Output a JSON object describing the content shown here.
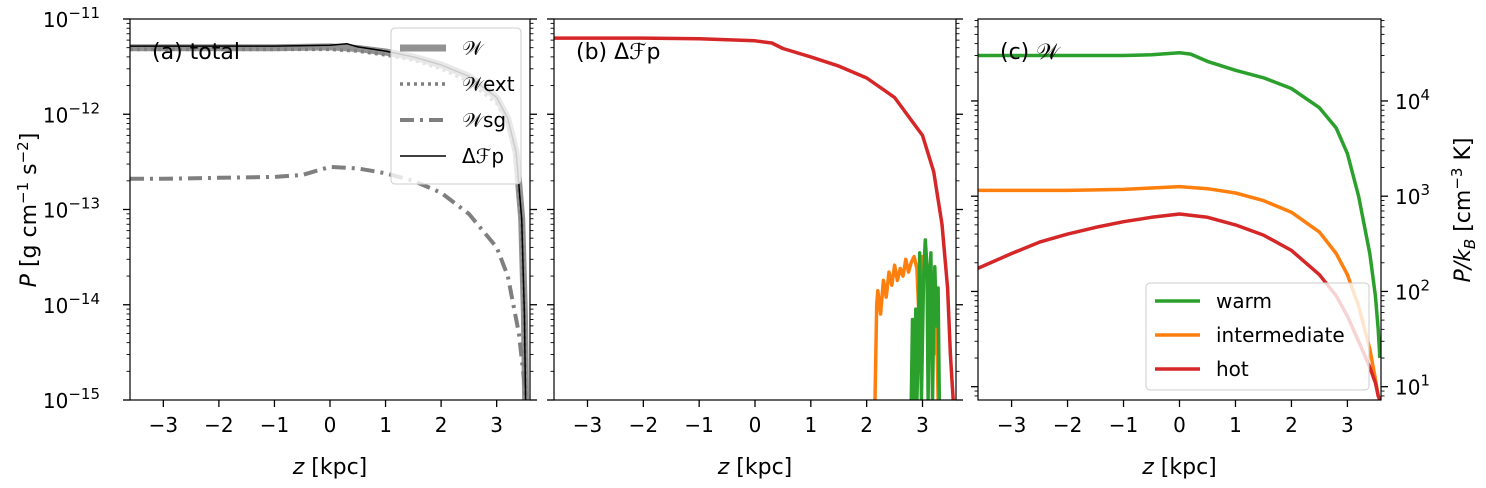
{
  "chart_data": [
    {
      "type": "line",
      "panel_label": "(a) total",
      "xlabel": "z [kpc]",
      "ylabel": "P [g cm⁻¹ s⁻²]",
      "xlim": [
        -3.6,
        3.6
      ],
      "ylim": [
        1e-15,
        1e-11
      ],
      "yscale": "log",
      "x_ticks": [
        -3,
        -2,
        -1,
        0,
        1,
        2,
        3
      ],
      "x_tick_labels": [
        "−3",
        "−2",
        "−1",
        "0",
        "1",
        "2",
        "3"
      ],
      "y_tick_labels": [
        {
          "base": "10",
          "exp": "−11"
        },
        {
          "base": "10",
          "exp": "−12"
        },
        {
          "base": "10",
          "exp": "−13"
        },
        {
          "base": "10",
          "exp": "−14"
        },
        {
          "base": "10",
          "exp": "−15"
        }
      ],
      "legend": {
        "location": "upper-right",
        "entries": [
          "𝒲",
          "𝒲ext",
          "𝒲sg",
          "Δℱp"
        ]
      },
      "series": [
        {
          "name": "𝒲",
          "color": "#7f7f7f",
          "style": "solid-thick",
          "x": [
            -3.6,
            -3,
            -2,
            -1,
            0,
            0.5,
            1,
            1.5,
            2,
            2.5,
            3,
            3.2,
            3.35,
            3.45,
            3.5,
            3.52
          ],
          "y": [
            5e-12,
            5e-12,
            5e-12,
            5e-12,
            5.1e-12,
            4.9e-12,
            4.5e-12,
            4e-12,
            3.3e-12,
            2.5e-12,
            1.5e-12,
            9e-13,
            4e-13,
            8e-14,
            8e-15,
            1e-15
          ]
        },
        {
          "name": "𝒲ext",
          "color": "#7f7f7f",
          "style": "dotted",
          "x": [
            -3.6,
            -3,
            -2,
            -1,
            0,
            0.5,
            1,
            1.5,
            2,
            2.5,
            3,
            3.2,
            3.35,
            3.45,
            3.5,
            3.52
          ],
          "y": [
            4.8e-12,
            4.8e-12,
            4.8e-12,
            4.8e-12,
            4.8e-12,
            4.6e-12,
            4.2e-12,
            3.7e-12,
            3e-12,
            2.2e-12,
            1.3e-12,
            8e-13,
            3.5e-13,
            7e-14,
            7e-15,
            1e-15
          ]
        },
        {
          "name": "𝒲sg",
          "color": "#7f7f7f",
          "style": "dashdot",
          "x": [
            -3.6,
            -3,
            -2,
            -1,
            -0.5,
            0,
            0.5,
            1,
            1.5,
            2,
            2.5,
            3,
            3.2,
            3.4,
            3.5,
            3.52
          ],
          "y": [
            2.1e-13,
            2.1e-13,
            2.15e-13,
            2.2e-13,
            2.3e-13,
            2.8e-13,
            2.7e-13,
            2.4e-13,
            2e-13,
            1.5e-13,
            9e-14,
            4e-14,
            2e-14,
            5e-15,
            1.5e-15,
            1e-15
          ]
        },
        {
          "name": "Δℱp",
          "color": "#000000",
          "style": "solid-thin",
          "x": [
            -3.6,
            -3,
            -2,
            -1,
            0,
            0.3,
            0.5,
            1,
            1.5,
            2,
            2.5,
            3,
            3.2,
            3.35,
            3.45,
            3.5,
            3.52
          ],
          "y": [
            5.2e-12,
            5.2e-12,
            5.2e-12,
            5.2e-12,
            5.3e-12,
            5.5e-12,
            5.1e-12,
            4.6e-12,
            4e-12,
            3.3e-12,
            2.5e-12,
            1.5e-12,
            9e-13,
            4e-13,
            8e-14,
            8e-15,
            1e-15
          ]
        }
      ]
    },
    {
      "type": "line",
      "panel_label": "(b) Δℱp",
      "xlabel": "z [kpc]",
      "xlim": [
        -3.6,
        3.6
      ],
      "ylim": [
        1e-15,
        1e-11
      ],
      "yscale": "log",
      "x_ticks": [
        -3,
        -2,
        -1,
        0,
        1,
        2,
        3
      ],
      "x_tick_labels": [
        "−3",
        "−2",
        "−1",
        "0",
        "1",
        "2",
        "3"
      ],
      "series": [
        {
          "color": "#d62728",
          "x": [
            -3.6,
            -3,
            -2,
            -1,
            0,
            0.3,
            0.5,
            1,
            1.5,
            2,
            2.5,
            3,
            3.2,
            3.35,
            3.45,
            3.5,
            3.55
          ],
          "y": [
            6.3e-12,
            6.3e-12,
            6.3e-12,
            6.2e-12,
            5.9e-12,
            5.6e-12,
            4.9e-12,
            4e-12,
            3.2e-12,
            2.4e-12,
            1.5e-12,
            6e-13,
            2.5e-13,
            7e-14,
            1.5e-14,
            3e-15,
            1e-15
          ]
        },
        {
          "color": "#ff7f0e",
          "x": [
            2.15,
            2.18,
            2.2,
            2.25,
            2.3,
            2.35,
            2.4,
            2.45,
            2.5,
            2.55,
            2.6,
            2.65,
            2.7,
            2.75,
            2.8,
            2.85,
            2.9,
            2.95,
            3.0,
            3.05,
            3.1,
            3.15,
            3.2,
            3.25,
            3.28
          ],
          "y": [
            1e-15,
            1e-14,
            1.4e-14,
            8e-15,
            1.8e-14,
            1.2e-14,
            2.2e-14,
            1.6e-14,
            2.6e-14,
            1.8e-14,
            2.4e-14,
            2e-14,
            3e-14,
            2.2e-14,
            2.8e-14,
            3.2e-14,
            2.4e-14,
            5e-15,
            3.2e-14,
            2.2e-14,
            2.6e-14,
            1.2e-14,
            3e-15,
            8e-15,
            1e-15
          ]
        },
        {
          "color": "#2ca02c",
          "x": [
            2.8,
            2.82,
            2.85,
            2.88,
            2.9,
            2.92,
            2.95,
            2.98,
            3.0,
            3.02,
            3.05,
            3.08,
            3.1,
            3.12,
            3.15,
            3.18,
            3.2,
            3.22,
            3.25,
            3.28,
            3.3
          ],
          "y": [
            1e-15,
            7e-15,
            1e-15,
            9e-15,
            1e-15,
            3e-15,
            3.5e-14,
            1e-15,
            4.5e-15,
            2e-14,
            4.8e-14,
            2.5e-14,
            1e-15,
            1.2e-14,
            3.5e-14,
            1e-15,
            8e-15,
            2.5e-14,
            6e-15,
            1.5e-14,
            1e-15
          ]
        }
      ]
    },
    {
      "type": "line",
      "panel_label": "(c) 𝒲",
      "xlabel": "z [kpc]",
      "ylabel_right": "P/k_B [cm⁻³ K]",
      "xlim": [
        -3.6,
        3.6
      ],
      "ylim": [
        7.25,
        72500
      ],
      "yscale": "log",
      "x_ticks": [
        -3,
        -2,
        -1,
        0,
        1,
        2,
        3
      ],
      "x_tick_labels": [
        "−3",
        "−2",
        "−1",
        "0",
        "1",
        "2",
        "3"
      ],
      "y_tick_labels_right": [
        {
          "value": 10000,
          "base": "10",
          "exp": "4"
        },
        {
          "value": 1000,
          "base": "10",
          "exp": "3"
        },
        {
          "value": 100,
          "base": "10",
          "exp": "2"
        },
        {
          "value": 10,
          "base": "10",
          "exp": "1"
        }
      ],
      "legend": {
        "location": "lower-right",
        "entries": [
          "warm",
          "intermediate",
          "hot"
        ]
      },
      "series": [
        {
          "name": "warm",
          "color": "#2ca02c",
          "x": [
            -3.6,
            -3,
            -2,
            -1,
            -0.5,
            0,
            0.2,
            0.5,
            1,
            1.5,
            2,
            2.5,
            2.8,
            3,
            3.2,
            3.4,
            3.5,
            3.55,
            3.58
          ],
          "y": [
            30000,
            30000,
            30000,
            30000,
            30500,
            32000,
            31000,
            26000,
            21000,
            17500,
            13500,
            8500,
            5200,
            2800,
            1000,
            250,
            90,
            40,
            20
          ]
        },
        {
          "name": "intermediate",
          "color": "#ff7f0e",
          "x": [
            -3.6,
            -3,
            -2,
            -1,
            -0.5,
            0,
            0.5,
            1,
            1.5,
            2,
            2.5,
            2.8,
            3,
            3.2,
            3.4,
            3.5,
            3.55,
            3.58
          ],
          "y": [
            1150,
            1150,
            1150,
            1180,
            1220,
            1260,
            1200,
            1080,
            900,
            680,
            420,
            250,
            150,
            70,
            25,
            12,
            8,
            7.25
          ]
        },
        {
          "name": "hot",
          "color": "#d62728",
          "x": [
            -3.6,
            -3,
            -2.5,
            -2,
            -1.5,
            -1,
            -0.5,
            0,
            0.5,
            1,
            1.5,
            2,
            2.5,
            2.8,
            3,
            3.2,
            3.4,
            3.5,
            3.55,
            3.58
          ],
          "y": [
            175,
            250,
            330,
            400,
            470,
            540,
            600,
            650,
            600,
            500,
            390,
            270,
            150,
            90,
            55,
            30,
            16,
            11,
            8,
            7.25
          ]
        }
      ]
    }
  ]
}
